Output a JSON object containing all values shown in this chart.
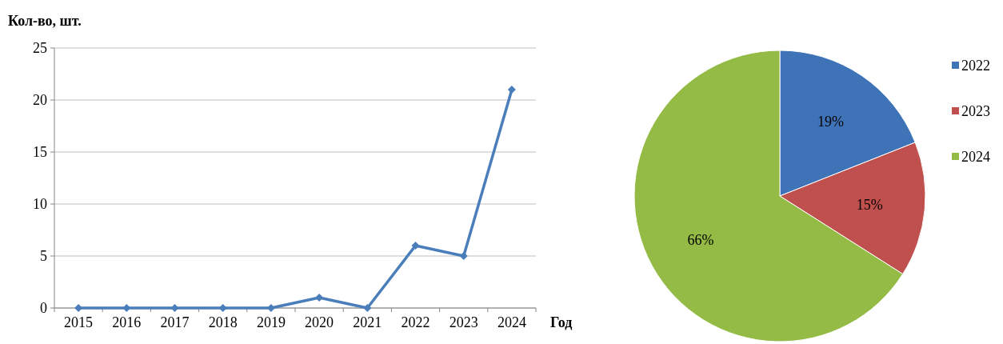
{
  "chart_data": [
    {
      "type": "line",
      "ylabel": "Кол-во, шт.",
      "xlabel": "Год",
      "categories": [
        "2015",
        "2016",
        "2017",
        "2018",
        "2019",
        "2020",
        "2021",
        "2022",
        "2023",
        "2024"
      ],
      "series": [
        {
          "color": "#4a7ebb",
          "values": [
            0,
            0,
            0,
            0,
            0,
            1,
            0,
            6,
            5,
            21
          ]
        }
      ],
      "ylim": [
        0,
        25
      ],
      "yticks": [
        0,
        5,
        10,
        15,
        20,
        25
      ],
      "grid": "y",
      "marker": "diamond",
      "line_style": "solid"
    },
    {
      "type": "pie",
      "categories": [
        "2022",
        "2023",
        "2024"
      ],
      "values": [
        19,
        15,
        66
      ],
      "colors": [
        "#3f73b8",
        "#c0504d",
        "#94bb45"
      ],
      "value_labels": [
        "19%",
        "15%",
        "66%"
      ],
      "legend": "right"
    }
  ]
}
